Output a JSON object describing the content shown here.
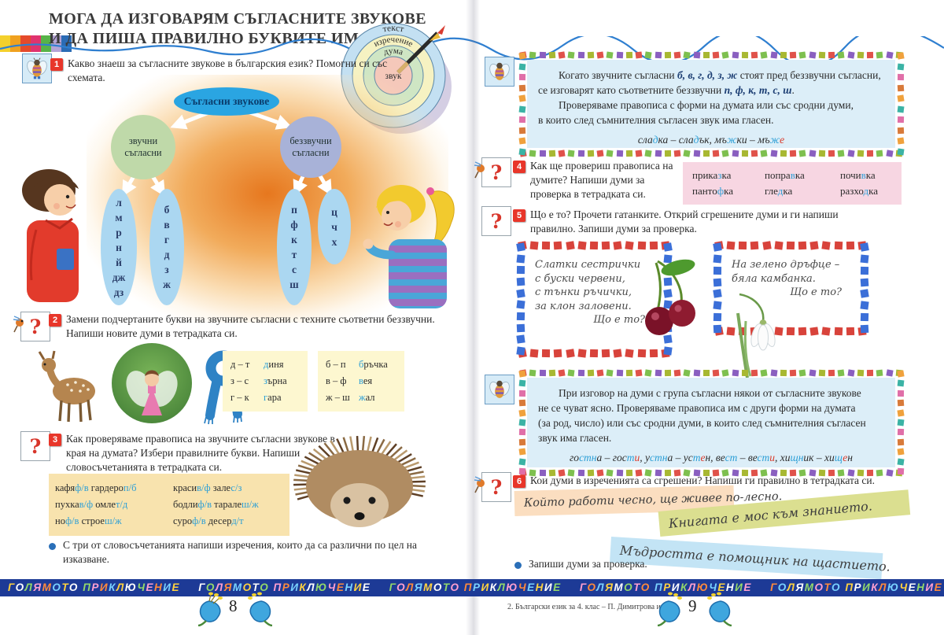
{
  "title": {
    "line1": "МОГА ДА ИЗГОВАРЯМ СЪГЛАСНИТЕ ЗВУКОВЕ",
    "line2": "И ДА ПИША ПРАВИЛНО БУКВИТЕ ИМ"
  },
  "target": {
    "rings": [
      "текст",
      "изречение",
      "дума",
      "звук"
    ]
  },
  "scheme": {
    "root": "Съгласни звукове",
    "left_label": [
      "звучни",
      "съгласни"
    ],
    "right_label": [
      "беззвучни",
      "съгласни"
    ],
    "columns": [
      [
        "л",
        "м",
        "р",
        "н",
        "й",
        "дж",
        "дз"
      ],
      [
        "б",
        "в",
        "г",
        "д",
        "з",
        "ж"
      ],
      [
        "п",
        "ф",
        "к",
        "т",
        "с",
        "ш"
      ],
      [
        "ц",
        "ч",
        "х"
      ]
    ]
  },
  "icons": {
    "question_mark": "?"
  },
  "ex1": {
    "num": "1",
    "text": "Какво знаеш за съгласните звукове в българския език? Помогни си със схемата."
  },
  "ex2": {
    "num": "2",
    "text": "Замени подчертаните букви на звучните съгласни с техните съответни беззвучни. Напиши новите думи в тетрадката си.",
    "box1": [
      {
        "pair": "д – т",
        "word": [
          [
            "д",
            "b"
          ],
          [
            "иня",
            ""
          ]
        ]
      },
      {
        "pair": "з – с",
        "word": [
          [
            "з",
            "b"
          ],
          [
            "ърна",
            ""
          ]
        ]
      },
      {
        "pair": "г – к",
        "word": [
          [
            "г",
            "b"
          ],
          [
            "ара",
            ""
          ]
        ]
      }
    ],
    "box2": [
      {
        "pair": "б – п",
        "word": [
          [
            "б",
            "b"
          ],
          [
            "ръчка",
            ""
          ]
        ]
      },
      {
        "pair": "в – ф",
        "word": [
          [
            "в",
            "b"
          ],
          [
            "ея",
            ""
          ]
        ]
      },
      {
        "pair": "ж – ш",
        "word": [
          [
            "ж",
            "b"
          ],
          [
            "ал",
            ""
          ]
        ]
      }
    ]
  },
  "ex3": {
    "num": "3",
    "text": "Как проверяваме правописа на звучните съгласни звукове в края на думата? Избери правилните букви. Напиши словосъчетанията в тетрадката си.",
    "box1": [
      [
        [
          "кафя",
          ""
        ],
        [
          "ф/в",
          "b"
        ],
        [
          " гардеро",
          ""
        ],
        [
          "п/б",
          "b"
        ]
      ],
      [
        [
          "пухка",
          ""
        ],
        [
          "в/ф",
          "b"
        ],
        [
          " омле",
          ""
        ],
        [
          "т/д",
          "b"
        ]
      ],
      [
        [
          "но",
          ""
        ],
        [
          "ф/в",
          "b"
        ],
        [
          " строе",
          ""
        ],
        [
          "ш/ж",
          "b"
        ]
      ]
    ],
    "box2": [
      [
        [
          "краси",
          ""
        ],
        [
          "в/ф",
          "b"
        ],
        [
          " зале",
          ""
        ],
        [
          "с/з",
          "b"
        ]
      ],
      [
        [
          "бодли",
          ""
        ],
        [
          "ф/в",
          "b"
        ],
        [
          " тарале",
          ""
        ],
        [
          "ш/ж",
          "b"
        ]
      ],
      [
        [
          "суро",
          ""
        ],
        [
          "ф/в",
          "b"
        ],
        [
          " десер",
          ""
        ],
        [
          "д/т",
          "b"
        ]
      ]
    ],
    "bullet": "С три от словосъчетанията напиши изречения, които да са различни по цел на изказване."
  },
  "info1": {
    "lines": [
      [
        [
          "Когато звучните съгласни ",
          ""
        ],
        [
          "б, в, г, д, з, ж",
          "d"
        ],
        [
          " стоят пред беззвучни съгласни,",
          ""
        ]
      ],
      [
        [
          "се изговарят като съответните беззвучни ",
          ""
        ],
        [
          "п, ф, к, т, с, ш",
          "d"
        ],
        [
          ".",
          ""
        ]
      ],
      [
        [
          "Проверяваме правописа с форми на думата или със сродни думи,",
          ""
        ]
      ],
      [
        [
          "в които след съмнителния съгласен звук има гласен.",
          ""
        ]
      ]
    ],
    "example": [
      [
        "сла",
        ""
      ],
      [
        "д",
        "b"
      ],
      [
        "ка – сла",
        ""
      ],
      [
        "д",
        "b"
      ],
      [
        "ък, мъ",
        ""
      ],
      [
        "ж",
        "b"
      ],
      [
        "ки – мъ",
        ""
      ],
      [
        "ж",
        "b"
      ],
      [
        "е",
        "r"
      ]
    ]
  },
  "ex4": {
    "num": "4",
    "text": "Как ще провериш правописа на думите? Напиши думи за проверка в тетрадката си.",
    "words": [
      [
        [
          "прика",
          ""
        ],
        [
          "з",
          "b"
        ],
        [
          "ка",
          ""
        ]
      ],
      [
        [
          "попра",
          ""
        ],
        [
          "в",
          "b"
        ],
        [
          "ка",
          ""
        ]
      ],
      [
        [
          "почи",
          ""
        ],
        [
          "в",
          "b"
        ],
        [
          "ка",
          ""
        ]
      ],
      [
        [
          "панто",
          ""
        ],
        [
          "ф",
          "b"
        ],
        [
          "ка",
          ""
        ]
      ],
      [
        [
          "гле",
          ""
        ],
        [
          "д",
          "b"
        ],
        [
          "ка",
          ""
        ]
      ],
      [
        [
          "разхо",
          ""
        ],
        [
          "д",
          "b"
        ],
        [
          "ка",
          ""
        ]
      ]
    ]
  },
  "ex5": {
    "num": "5",
    "text": "Що е то? Прочети гатанките. Открий сгрешените думи и ги напиши правилно. Запиши думи за проверка."
  },
  "riddles": {
    "r1": [
      "Слатки сестрички",
      "с буски червени,",
      "с тънки ръчички,",
      "за клон заловени.",
      "Що е то?"
    ],
    "r2": [
      "На зелено дръфце –",
      "бяла камбанка.",
      "Що е то?"
    ]
  },
  "info2": {
    "lines": [
      "При изговор на думи с група съгласни някои от съгласните звукове",
      "не се чуват ясно. Проверяваме правописа им с други форми на думата",
      "(за род, число) или със сродни думи, в които след съмнителния съгласен",
      "звук има гласен."
    ],
    "example": [
      [
        "го",
        ""
      ],
      [
        "стн",
        "b"
      ],
      [
        "а – гос",
        ""
      ],
      [
        "т",
        "b"
      ],
      [
        "и",
        "r"
      ],
      [
        ", у",
        ""
      ],
      [
        "стн",
        "b"
      ],
      [
        "а – ус",
        ""
      ],
      [
        "т",
        "b"
      ],
      [
        "е",
        "r"
      ],
      [
        "н, ве",
        ""
      ],
      [
        "ст",
        "b"
      ],
      [
        " – ве",
        ""
      ],
      [
        "ст",
        "b"
      ],
      [
        "и",
        "r"
      ],
      [
        ", хи",
        ""
      ],
      [
        "щн",
        "b"
      ],
      [
        "ик – хи",
        ""
      ],
      [
        "щ",
        "b"
      ],
      [
        "е",
        "r"
      ],
      [
        "н",
        ""
      ]
    ]
  },
  "ex6": {
    "num": "6",
    "text": "Кои думи в изреченията са сгрешени? Напиши ги правилно в тетрадката си.",
    "strips": [
      "Който работи чесно, ще живее по-лесно.",
      "Книгата е мос към знанието.",
      "Мъдростта е помощник на щастието."
    ],
    "bullet": "Запиши думи за проверка."
  },
  "footer": {
    "banner_text": "ГОЛЯМОТО ПРИКЛЮЧЕНИЕ",
    "banner_repeat": 5,
    "page_left": "8",
    "page_right": "9",
    "credit": "2. Български език за 4. клас – П. Димитрова и др."
  },
  "colors": {
    "letter_blue": "#2d9fd6",
    "letter_red": "#d93a2b",
    "info_bg": "#dceef8",
    "banner_bg": "#1d3a96"
  }
}
